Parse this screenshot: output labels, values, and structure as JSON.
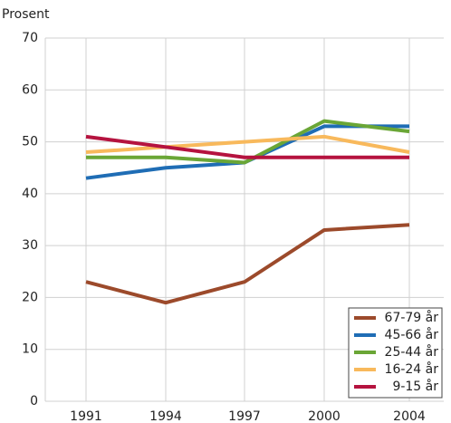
{
  "chart_data": {
    "type": "line",
    "ylabel": "Prosent",
    "categories": [
      "1991",
      "1994",
      "1997",
      "2000",
      "2004"
    ],
    "series": [
      {
        "name": "67-79 år",
        "color": "#9c4a2b",
        "values": [
          23,
          19,
          23,
          33,
          34
        ]
      },
      {
        "name": "45-66 år",
        "color": "#1f6db5",
        "values": [
          43,
          45,
          46,
          53,
          53
        ]
      },
      {
        "name": "25-44 år",
        "color": "#6aa636",
        "values": [
          47,
          47,
          46,
          54,
          52
        ]
      },
      {
        "name": "16-24 år",
        "color": "#f8b95c",
        "values": [
          48,
          49,
          50,
          51,
          48
        ]
      },
      {
        "name": "9-15 år",
        "color": "#b5133f",
        "values": [
          51,
          49,
          47,
          47,
          47
        ]
      }
    ],
    "ylim": [
      0,
      70
    ],
    "yticks": [
      0,
      10,
      20,
      30,
      40,
      50,
      60,
      70
    ],
    "grid": true,
    "legend": "lower right"
  }
}
